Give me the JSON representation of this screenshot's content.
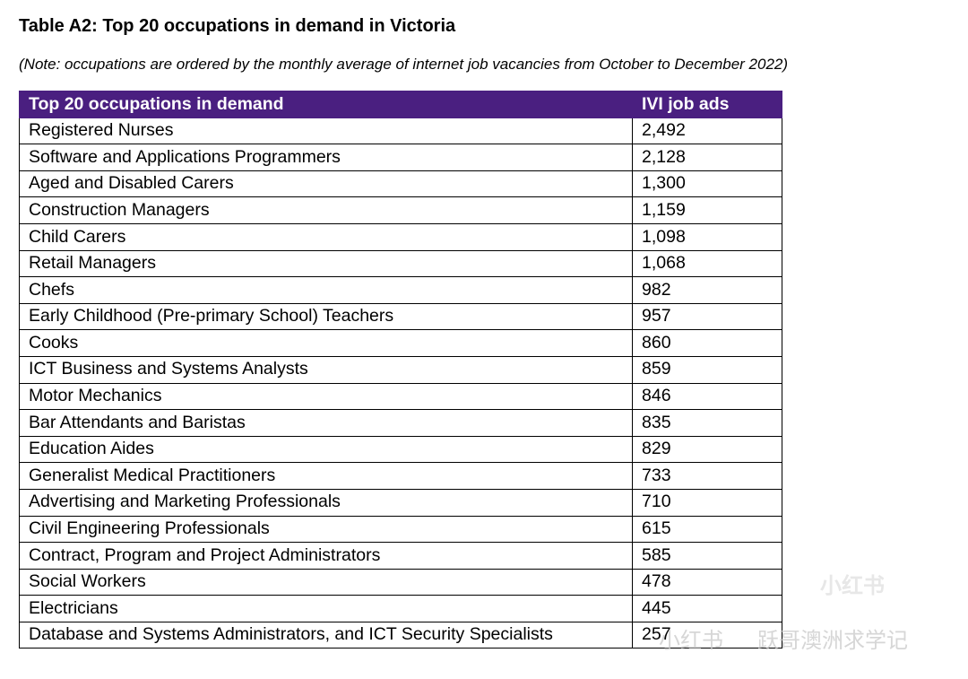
{
  "header": {
    "title": "Table A2: Top 20 occupations in demand in Victoria",
    "note": "(Note: occupations are ordered by the monthly average of internet job vacancies from October to December 2022)"
  },
  "table": {
    "columns": [
      "Top 20 occupations in demand",
      "IVI job ads"
    ],
    "rows": [
      [
        "Registered Nurses",
        "2,492"
      ],
      [
        "Software and Applications Programmers",
        "2,128"
      ],
      [
        "Aged and Disabled Carers",
        "1,300"
      ],
      [
        "Construction Managers",
        "1,159"
      ],
      [
        "Child Carers",
        "1,098"
      ],
      [
        "Retail Managers",
        "1,068"
      ],
      [
        "Chefs",
        "982"
      ],
      [
        "Early Childhood (Pre-primary School) Teachers",
        "957"
      ],
      [
        "Cooks",
        "860"
      ],
      [
        "ICT Business and Systems Analysts",
        "859"
      ],
      [
        "Motor Mechanics",
        "846"
      ],
      [
        "Bar Attendants and Baristas",
        "835"
      ],
      [
        "Education Aides",
        "829"
      ],
      [
        "Generalist Medical Practitioners",
        "733"
      ],
      [
        "Advertising and Marketing Professionals",
        "710"
      ],
      [
        "Civil Engineering Professionals",
        "615"
      ],
      [
        "Contract, Program and Project Administrators",
        "585"
      ],
      [
        "Social Workers",
        "478"
      ],
      [
        "Electricians",
        "445"
      ],
      [
        "Database and Systems Administrators, and ICT Security Specialists",
        "257"
      ]
    ]
  },
  "watermark": {
    "logo": "小红书",
    "brand": "小红书",
    "account": "跃哥澳洲求学记"
  }
}
